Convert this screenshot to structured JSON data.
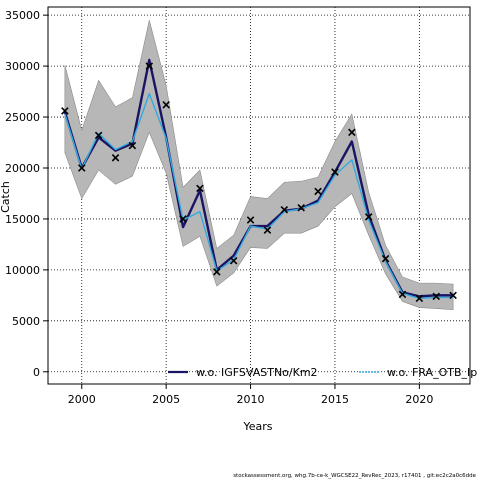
{
  "chart_data": {
    "type": "line",
    "xlabel": "Years",
    "ylabel": "Catch",
    "xlim": [
      1998,
      2023
    ],
    "ylim": [
      -1200,
      35800
    ],
    "x_ticks": [
      2000,
      2005,
      2010,
      2015,
      2020
    ],
    "y_ticks": [
      0,
      5000,
      10000,
      15000,
      20000,
      25000,
      30000,
      35000
    ],
    "grid": "dotted",
    "legend_placement": "bottom-inside",
    "years": [
      1999,
      2000,
      2001,
      2002,
      2003,
      2004,
      2005,
      2006,
      2007,
      2008,
      2009,
      2010,
      2011,
      2012,
      2013,
      2014,
      2015,
      2016,
      2017,
      2018,
      2019,
      2020,
      2021,
      2022
    ],
    "observed": [
      25600,
      20000,
      23200,
      21000,
      22200,
      30000,
      26200,
      15000,
      18000,
      9800,
      10900,
      14900,
      13900,
      15900,
      16100,
      17700,
      19600,
      23500,
      15200,
      11100,
      7600,
      7200,
      7400,
      7500
    ],
    "confidence_band": {
      "lower": [
        21500,
        17000,
        19800,
        18400,
        19200,
        23500,
        19500,
        12300,
        13300,
        8400,
        9700,
        12200,
        12100,
        13600,
        13600,
        14300,
        16200,
        17500,
        13400,
        9600,
        6900,
        6300,
        6200,
        6100
      ],
      "upper": [
        30100,
        23700,
        28600,
        26000,
        26900,
        34500,
        28100,
        18100,
        19800,
        12100,
        13400,
        17200,
        17000,
        18600,
        18700,
        19100,
        22600,
        25300,
        17600,
        12400,
        9300,
        8700,
        8700,
        8600
      ]
    },
    "series": [
      {
        "name": "w.o. IGFSVASTNo/Km2",
        "color": "#1a1464",
        "values": [
          25500,
          20000,
          23000,
          21700,
          22400,
          30600,
          23000,
          14200,
          17800,
          10000,
          11400,
          14300,
          14300,
          15800,
          16000,
          16800,
          19600,
          22600,
          15400,
          10900,
          7800,
          7400,
          7500,
          7500
        ]
      },
      {
        "name": "w.o. FRA_OTB_Ip",
        "color": "#33aadd",
        "values": [
          25300,
          19900,
          23400,
          21800,
          22600,
          27300,
          22900,
          14900,
          15700,
          9900,
          11000,
          14300,
          14000,
          15700,
          16000,
          16600,
          19300,
          20800,
          14900,
          10800,
          7700,
          7200,
          7300,
          7300
        ]
      }
    ]
  },
  "footer_text": "stockassessment.org, whg.7b-ce-k_WGCSE22_RevRec_2023, r17401 , git:ec2c2a0c6dde"
}
